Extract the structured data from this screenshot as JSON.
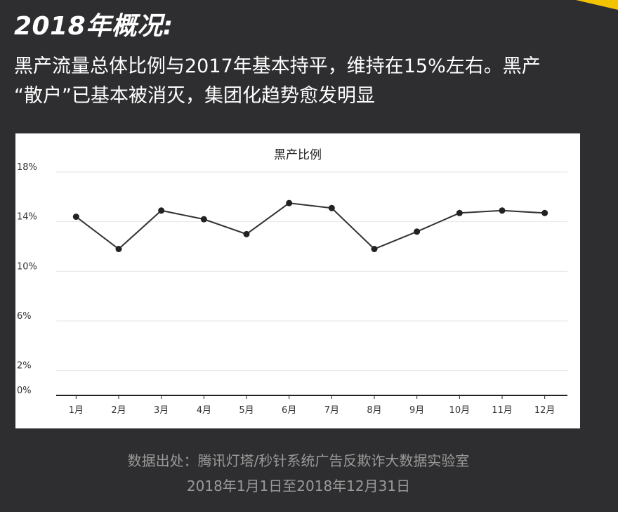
{
  "header": {
    "title": "2018年概况:",
    "summary_line1": "黑产流量总体比例与2017年基本持平，维持在15%左右。黑产",
    "summary_line2": "“散户”已基本被消灭，集团化趋势愈发明显"
  },
  "footer": {
    "source_line1": "数据出处：腾讯灯塔/秒针系统广告反欺诈大数据实验室",
    "source_line2": "2018年1月1日至2018年12月31日"
  },
  "colors": {
    "background": "#2e2e30",
    "accent": "#f5c400",
    "line": "#333333",
    "text": "#ffffff",
    "muted": "#9a9a9a"
  },
  "chart_data": {
    "type": "line",
    "title": "黑产比例",
    "xlabel": "",
    "ylabel": "",
    "categories": [
      "1月",
      "2月",
      "3月",
      "4月",
      "5月",
      "6月",
      "7月",
      "8月",
      "9月",
      "10月",
      "11月",
      "12月"
    ],
    "values": [
      14.4,
      11.8,
      14.9,
      14.2,
      13.0,
      15.5,
      15.1,
      11.8,
      13.2,
      14.7,
      14.9,
      14.7
    ],
    "unit": "%",
    "ylim": [
      0,
      18
    ],
    "yticks": [
      "0%",
      "2%",
      "6%",
      "10%",
      "14%",
      "18%"
    ],
    "ytick_values": [
      0,
      2,
      6,
      10,
      14,
      18
    ],
    "grid": true,
    "legend": "none"
  }
}
